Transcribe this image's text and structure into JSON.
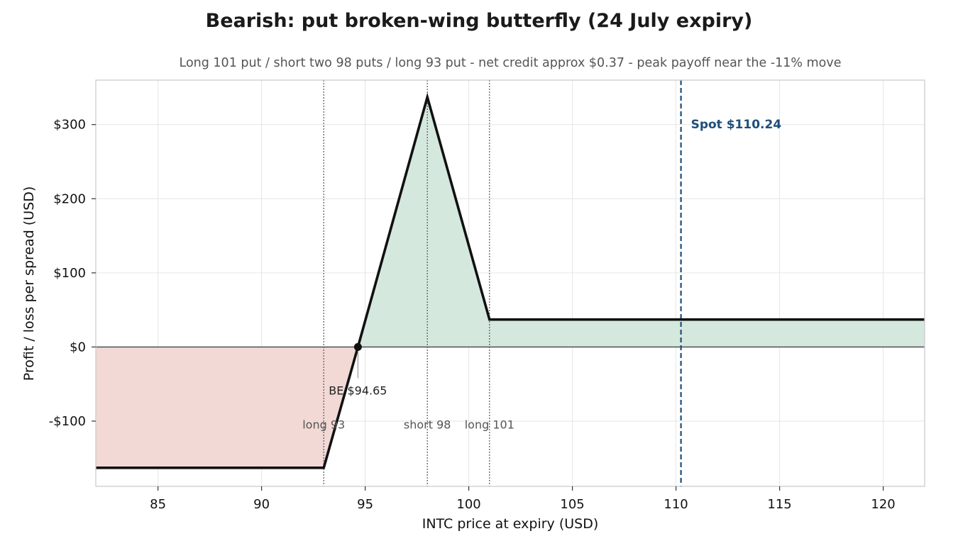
{
  "chart_data": {
    "type": "line",
    "title": "Bearish: put broken-wing butterfly (24 July expiry)",
    "subtitle": "Long 101 put / short two 98 puts / long 93 put  -  net credit approx $0.37  -  peak payoff near the -11% move",
    "xlabel": "INTC price at expiry (USD)",
    "ylabel": "Profit / loss per spread (USD)",
    "xlim": [
      82,
      122
    ],
    "ylim": [
      -188,
      360
    ],
    "x_ticks": [
      85,
      90,
      95,
      100,
      105,
      110,
      115,
      120
    ],
    "y_ticks": [
      {
        "value": 300,
        "label": "$300"
      },
      {
        "value": 200,
        "label": "$200"
      },
      {
        "value": 100,
        "label": "$100"
      },
      {
        "value": 0,
        "label": "$0"
      },
      {
        "value": -100,
        "label": "-$100"
      }
    ],
    "grid": true,
    "series": [
      {
        "x": [
          82,
          93,
          94.65,
          98,
          101,
          122
        ],
        "y": [
          -163,
          -163,
          0,
          337,
          37,
          37
        ],
        "color": "#111111"
      }
    ],
    "fill_colors": {
      "profit": "#d4e8de",
      "loss": "#f2d9d6"
    },
    "strikes": [
      {
        "x": 93,
        "label": "long 93"
      },
      {
        "x": 98,
        "label": "short 98"
      },
      {
        "x": 101,
        "label": "long 101"
      }
    ],
    "spot": {
      "x": 110.24,
      "label": "Spot $110.24",
      "color": "#1f4e79"
    },
    "breakeven": {
      "x": 94.65,
      "y": 0,
      "label": "BE $94.65"
    }
  }
}
